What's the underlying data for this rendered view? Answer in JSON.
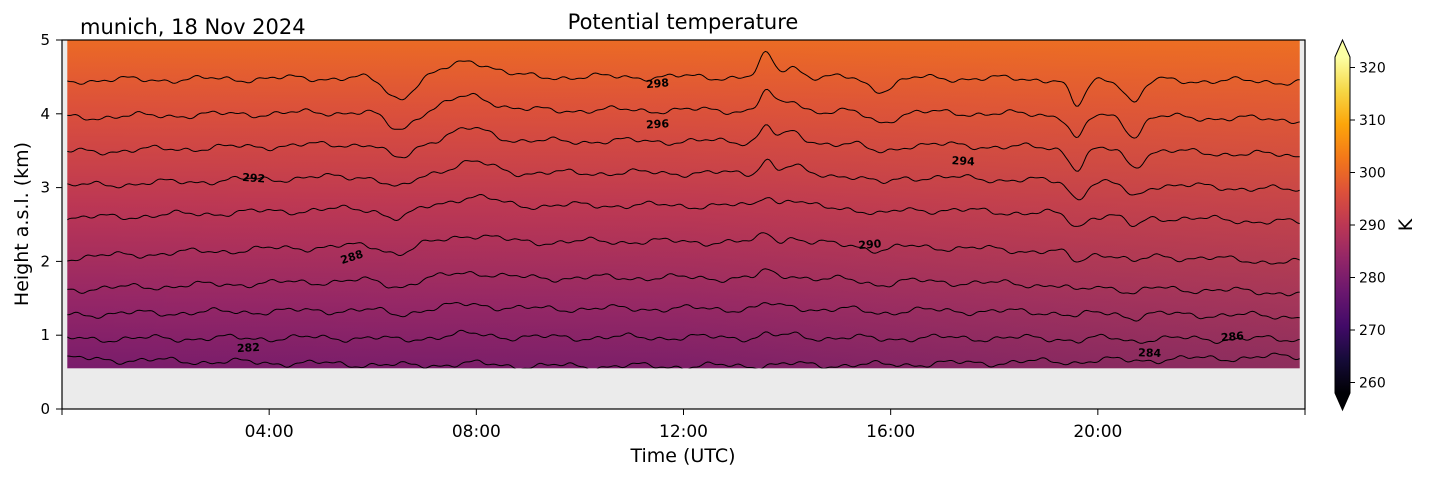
{
  "header": {
    "location_date": "munich, 18 Nov 2024"
  },
  "chart_data": {
    "type": "heatmap",
    "title": "Potential temperature",
    "xlabel": "Time (UTC)",
    "ylabel": "Height a.s.l. (km)",
    "x_ticks": [
      "04:00",
      "08:00",
      "12:00",
      "16:00",
      "20:00"
    ],
    "x_tick_hours": [
      4,
      8,
      12,
      16,
      20
    ],
    "xlim_hours": [
      0,
      24
    ],
    "y_ticks": [
      0,
      1,
      2,
      3,
      4,
      5
    ],
    "ylim": [
      0,
      5
    ],
    "data_hours": [
      0.1,
      23.9
    ],
    "data_bottom_km": 0.55,
    "colorbar": {
      "label": "K",
      "ticks": [
        260,
        270,
        280,
        290,
        300,
        310,
        320
      ],
      "range": [
        258,
        322
      ],
      "colormap": "inferno",
      "extend": "both"
    },
    "contour_levels": [
      282,
      284,
      286,
      288,
      290,
      292,
      294,
      296,
      298,
      300
    ],
    "contour_labels": [
      {
        "text": "282",
        "hour": 3.6,
        "km": 0.82,
        "angle": -3
      },
      {
        "text": "284",
        "hour": 21.0,
        "km": 0.75,
        "angle": 2
      },
      {
        "text": "286",
        "hour": 22.6,
        "km": 0.97,
        "angle": -5
      },
      {
        "text": "288",
        "hour": 5.6,
        "km": 2.05,
        "angle": -18
      },
      {
        "text": "290",
        "hour": 15.6,
        "km": 2.22,
        "angle": -5
      },
      {
        "text": "292",
        "hour": 3.7,
        "km": 3.12,
        "angle": 4
      },
      {
        "text": "294",
        "hour": 17.4,
        "km": 3.35,
        "angle": 3
      },
      {
        "text": "296",
        "hour": 11.5,
        "km": 3.85,
        "angle": -3
      },
      {
        "text": "298",
        "hour": 11.5,
        "km": 4.4,
        "angle": -5
      }
    ],
    "background_color": "#ebebeb"
  }
}
